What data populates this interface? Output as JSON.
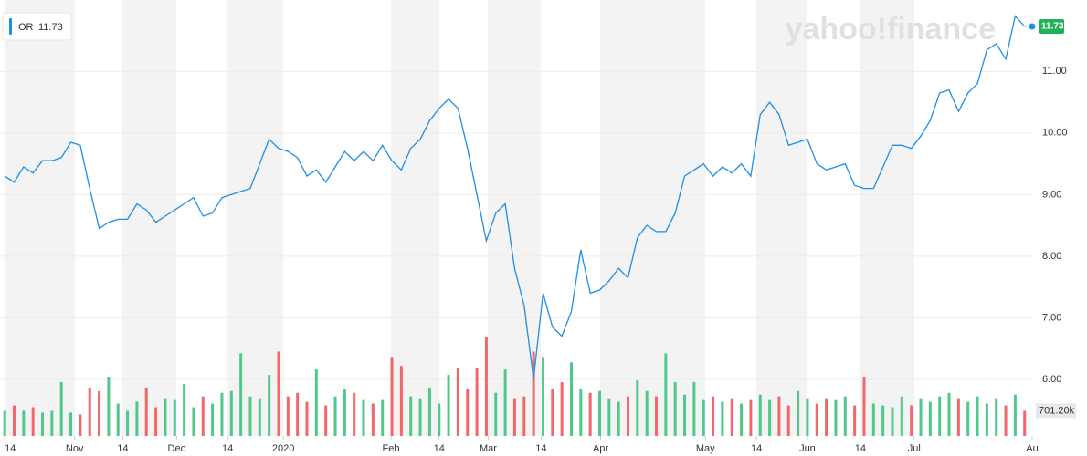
{
  "chart_data": {
    "type": "line",
    "watermark": "yahoo!finance",
    "series": [
      {
        "name": "OR",
        "color": "#1e8ee6",
        "values": [
          9.3,
          9.2,
          9.45,
          9.35,
          9.55,
          9.55,
          9.6,
          9.85,
          9.8,
          9.1,
          8.45,
          8.55,
          8.6,
          8.6,
          8.85,
          8.75,
          8.55,
          8.65,
          8.75,
          8.85,
          8.95,
          8.65,
          8.7,
          8.95,
          9.0,
          9.05,
          9.1,
          9.5,
          9.9,
          9.75,
          9.7,
          9.6,
          9.3,
          9.4,
          9.2,
          9.45,
          9.7,
          9.55,
          9.7,
          9.55,
          9.8,
          9.55,
          9.4,
          9.75,
          9.9,
          10.2,
          10.4,
          10.55,
          10.4,
          9.75,
          9.0,
          8.25,
          8.7,
          8.85,
          7.8,
          7.2,
          6.0,
          7.4,
          6.85,
          6.7,
          7.1,
          8.1,
          7.4,
          7.45,
          7.6,
          7.8,
          7.65,
          8.3,
          8.5,
          8.4,
          8.4,
          8.7,
          9.3,
          9.4,
          9.5,
          9.3,
          9.45,
          9.35,
          9.5,
          9.3,
          10.3,
          10.5,
          10.3,
          9.8,
          9.85,
          9.9,
          9.5,
          9.4,
          9.45,
          9.5,
          9.15,
          9.1,
          9.1,
          9.45,
          9.8,
          9.8,
          9.75,
          9.95,
          10.2,
          10.65,
          10.7,
          10.35,
          10.65,
          10.8,
          11.35,
          11.45,
          11.2,
          11.9,
          11.73
        ]
      }
    ],
    "volume": {
      "values": [
        700,
        850,
        700,
        800,
        650,
        700,
        1500,
        650,
        600,
        1350,
        1250,
        1650,
        900,
        700,
        950,
        1350,
        800,
        1050,
        1000,
        1450,
        800,
        1100,
        900,
        1200,
        1250,
        2300,
        1100,
        1050,
        1700,
        2350,
        1100,
        1200,
        950,
        1850,
        850,
        1100,
        1300,
        1200,
        1000,
        900,
        1000,
        2200,
        1950,
        1100,
        1050,
        1350,
        900,
        1700,
        1900,
        1300,
        1900,
        2750,
        1200,
        1850,
        1050,
        1100,
        2350,
        2200,
        1300,
        1500,
        2050,
        1300,
        1200,
        1250,
        1050,
        950,
        1100,
        1550,
        1250,
        1100,
        2300,
        1500,
        1150,
        1500,
        1000,
        1100,
        950,
        1050,
        900,
        1000,
        1150,
        1000,
        1100,
        850,
        1250,
        1050,
        900,
        1050,
        1000,
        1100,
        850,
        1650,
        900,
        850,
        800,
        1100,
        850,
        1050,
        950,
        1100,
        1200,
        1050,
        950,
        1100,
        900,
        1050,
        850,
        1150,
        701.2
      ],
      "value_labels": {
        "108": "701.20k"
      },
      "vlim": [
        0,
        3200
      ],
      "up_color": "#4fc88a",
      "down_color": "#f2676b"
    },
    "xlim": [
      -0.5,
      108.8
    ],
    "xticks": [
      {
        "value": 0,
        "label": "14"
      },
      {
        "value": 7.4,
        "label": "Nov"
      },
      {
        "value": 12.5,
        "label": "14"
      },
      {
        "value": 18.2,
        "label": "Dec"
      },
      {
        "value": 23.6,
        "label": "14"
      },
      {
        "value": 29.5,
        "label": "2020"
      },
      {
        "value": 40.9,
        "label": "Feb"
      },
      {
        "value": 46.0,
        "label": "14"
      },
      {
        "value": 51.2,
        "label": "Mar"
      },
      {
        "value": 56.8,
        "label": "14"
      },
      {
        "value": 63.1,
        "label": "Apr"
      },
      {
        "value": 74.2,
        "label": "May"
      },
      {
        "value": 79.6,
        "label": "14"
      },
      {
        "value": 85.0,
        "label": "Jun"
      },
      {
        "value": 90.6,
        "label": "14"
      },
      {
        "value": 96.3,
        "label": "Jul"
      },
      {
        "value": 108.8,
        "label": "Au"
      }
    ],
    "ylim": [
      5.08,
      12.16
    ],
    "yticks": [
      {
        "value": 6,
        "label": "6.00"
      },
      {
        "value": 7,
        "label": "7.00"
      },
      {
        "value": 8,
        "label": "8.00"
      },
      {
        "value": 9,
        "label": "9.00"
      },
      {
        "value": 10,
        "label": "10.00"
      },
      {
        "value": 11,
        "label": "11.00"
      }
    ],
    "grid": true,
    "last_tag_color": "#21b15a"
  }
}
